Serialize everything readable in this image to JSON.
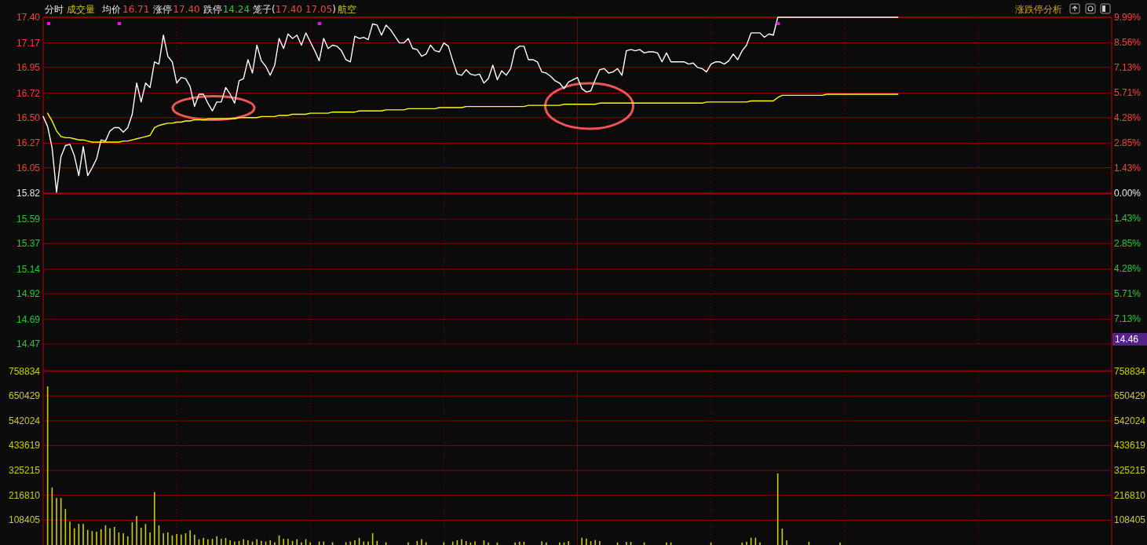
{
  "chart_data": [
    {
      "type": "line",
      "title": "分时",
      "annotations": [
        "成交量",
        "均价",
        "16.71",
        "涨停",
        "17.40",
        "跌停",
        "14.24",
        "笼子(",
        "17.40 17.05",
        ")",
        "航空",
        "涨跌停分析",
        "14.46"
      ],
      "categories": [
        null,
        null,
        null,
        null,
        null,
        null,
        null,
        null,
        null,
        null,
        null,
        null,
        null,
        null,
        null,
        null,
        null,
        null,
        null,
        null,
        null,
        null,
        null,
        null,
        null,
        null,
        null,
        null,
        null,
        null,
        null,
        null,
        null,
        null,
        null,
        null,
        null,
        null,
        null,
        null,
        null,
        null,
        null,
        null,
        null,
        null,
        null,
        null,
        null,
        null,
        null,
        null,
        null,
        null,
        null,
        null,
        null,
        null,
        null,
        null,
        null,
        null,
        null,
        null,
        null,
        null,
        null,
        null,
        null,
        null,
        null,
        null,
        null,
        null,
        null,
        null,
        null,
        null,
        null,
        null,
        null,
        null,
        null,
        null,
        null,
        null,
        null,
        null,
        null,
        null,
        null,
        null,
        null,
        null,
        null,
        null,
        null,
        null,
        null,
        null,
        null,
        null,
        null,
        null,
        null,
        null,
        null,
        null,
        null,
        null,
        null,
        null,
        null,
        null,
        null,
        null,
        null,
        null,
        null,
        null,
        null,
        null,
        null,
        null,
        null,
        null,
        null,
        null,
        null,
        null,
        null,
        null,
        null,
        null,
        null,
        null,
        null,
        null,
        null,
        null,
        null,
        null,
        null,
        null,
        null,
        null,
        null,
        null,
        null,
        null,
        null,
        null,
        null,
        null,
        null,
        null,
        null,
        null,
        null,
        null,
        null,
        null,
        null,
        null,
        null,
        null,
        null,
        null,
        null,
        null,
        null,
        null,
        null,
        null,
        null,
        null,
        null,
        null,
        null,
        null,
        null,
        null,
        null,
        null,
        null,
        null,
        null,
        null,
        null,
        null,
        null,
        null,
        null,
        null,
        null,
        null,
        null,
        null,
        null,
        null,
        null,
        null,
        null,
        null,
        null,
        null,
        null,
        null,
        null,
        null,
        null,
        null,
        null,
        null,
        null,
        null,
        null,
        null,
        null,
        null,
        null,
        null,
        null,
        null,
        null,
        null,
        null,
        null,
        null,
        null,
        null,
        null,
        null,
        null,
        null,
        null,
        null,
        null,
        null,
        null,
        null
      ],
      "series": [
        {
          "color": "#ffffff",
          "values": [
            16.51,
            16.42,
            16.23,
            15.83,
            16.15,
            16.25,
            16.26,
            16.16,
            15.98,
            16.24,
            15.98,
            16.05,
            16.13,
            16.3,
            16.29,
            16.38,
            16.41,
            16.41,
            16.37,
            16.41,
            16.53,
            16.81,
            16.64,
            16.81,
            16.77,
            17.0,
            16.98,
            17.24,
            17.05,
            17.0,
            16.81,
            16.86,
            16.85,
            16.78,
            16.6,
            16.71,
            16.71,
            16.63,
            16.56,
            16.64,
            16.64,
            16.77,
            16.71,
            16.63,
            16.83,
            16.85,
            17.02,
            16.9,
            17.15,
            17.01,
            16.96,
            16.88,
            16.97,
            17.21,
            17.12,
            17.25,
            17.21,
            17.24,
            17.15,
            17.26,
            17.18,
            17.1,
            17.01,
            17.21,
            17.12,
            17.15,
            17.14,
            17.1,
            17.02,
            17.0,
            17.23,
            17.21,
            17.22,
            17.2,
            17.34,
            17.33,
            17.24,
            17.33,
            17.29,
            17.23,
            17.17,
            17.17,
            17.21,
            17.12,
            17.11,
            17.05,
            17.07,
            17.15,
            17.1,
            17.09,
            17.17,
            17.14,
            17.01,
            16.89,
            16.88,
            16.93,
            16.89,
            16.88,
            16.89,
            16.81,
            16.85,
            16.97,
            16.84,
            16.92,
            16.88,
            16.94,
            17.11,
            17.14,
            17.14,
            17.02,
            17.02,
            17.0,
            16.91,
            16.9,
            16.87,
            16.83,
            16.81,
            16.76,
            16.82,
            16.84,
            16.86,
            16.76,
            16.73,
            16.74,
            16.84,
            16.93,
            16.94,
            16.9,
            16.91,
            16.94,
            16.88,
            17.1,
            17.11,
            17.1,
            17.11,
            17.08,
            17.09,
            17.09,
            17.08,
            17.0,
            17.08,
            17.0,
            17.0,
            17.0,
            17.0,
            16.98,
            16.99,
            16.95,
            16.94,
            16.91,
            16.98,
            17.0,
            17.0,
            16.98,
            17.01,
            17.07,
            17.02,
            17.1,
            17.15,
            17.26,
            17.26,
            17.26,
            17.22,
            17.25,
            17.24,
            17.4,
            17.4,
            17.4,
            17.4,
            17.4,
            17.4,
            17.4,
            17.4,
            17.4,
            17.4,
            17.4,
            17.4,
            17.4,
            17.4,
            17.4,
            17.4,
            17.4,
            17.4,
            17.4,
            17.4,
            17.4,
            17.4,
            17.4,
            17.4,
            17.4,
            17.4,
            17.4,
            17.4,
            null,
            null,
            null,
            null,
            null,
            null,
            null,
            null,
            null,
            null,
            null,
            null,
            null,
            null,
            null,
            null,
            null,
            null,
            null,
            null,
            null,
            null,
            null,
            null,
            null,
            null,
            null,
            null,
            null,
            null,
            null,
            null,
            null,
            null,
            null,
            null,
            null,
            null,
            null,
            null,
            null,
            null,
            null,
            null,
            null,
            null,
            null,
            null
          ]
        },
        {
          "color": "#ffff00",
          "values": [
            null,
            16.54,
            16.47,
            16.38,
            16.33,
            16.32,
            16.32,
            16.31,
            16.3,
            16.3,
            16.29,
            16.28,
            16.28,
            16.28,
            16.28,
            16.28,
            16.28,
            16.28,
            16.29,
            16.29,
            16.3,
            16.31,
            16.32,
            16.33,
            16.34,
            16.41,
            16.43,
            16.44,
            16.45,
            16.45,
            16.46,
            16.46,
            16.47,
            16.47,
            16.48,
            16.48,
            16.48,
            16.49,
            16.49,
            16.49,
            16.49,
            16.49,
            16.49,
            16.49,
            16.5,
            16.5,
            16.5,
            16.5,
            16.5,
            16.51,
            16.51,
            16.51,
            16.51,
            16.52,
            16.52,
            16.52,
            16.53,
            16.53,
            16.53,
            16.53,
            16.54,
            16.54,
            16.54,
            16.54,
            16.54,
            16.55,
            16.55,
            16.55,
            16.55,
            16.55,
            16.55,
            16.56,
            16.56,
            16.56,
            16.56,
            16.56,
            16.56,
            16.57,
            16.57,
            16.57,
            16.57,
            16.57,
            16.58,
            16.58,
            16.58,
            16.58,
            16.58,
            16.58,
            16.58,
            16.59,
            16.59,
            16.59,
            16.59,
            16.59,
            16.59,
            16.6,
            16.6,
            16.6,
            16.6,
            16.6,
            16.6,
            16.6,
            16.6,
            16.6,
            16.6,
            16.6,
            16.6,
            16.6,
            16.6,
            16.61,
            16.61,
            16.61,
            16.61,
            16.61,
            16.61,
            16.61,
            16.61,
            16.62,
            16.62,
            16.62,
            16.62,
            16.62,
            16.62,
            16.62,
            16.62,
            16.63,
            16.63,
            16.63,
            16.63,
            16.63,
            16.63,
            16.63,
            16.63,
            16.63,
            16.63,
            16.63,
            16.63,
            16.63,
            16.63,
            16.63,
            16.63,
            16.63,
            16.63,
            16.63,
            16.63,
            16.63,
            16.63,
            16.63,
            16.63,
            16.64,
            16.64,
            16.64,
            16.64,
            16.64,
            16.64,
            16.64,
            16.64,
            16.64,
            16.64,
            16.65,
            16.65,
            16.65,
            16.65,
            16.65,
            16.65,
            16.68,
            16.7,
            16.7,
            16.7,
            16.7,
            16.7,
            16.7,
            16.7,
            16.7,
            16.7,
            16.7,
            16.71,
            16.71,
            16.71,
            16.71,
            16.71,
            16.71,
            16.71,
            16.71,
            16.71,
            16.71,
            16.71,
            16.71,
            16.71,
            16.71,
            16.71,
            16.71,
            16.71,
            null,
            null,
            null,
            null,
            null,
            null,
            null,
            null,
            null,
            null,
            null,
            null,
            null,
            null,
            null,
            null,
            null,
            null,
            null,
            null,
            null,
            null,
            null,
            null,
            null,
            null,
            null,
            null,
            null,
            null,
            null,
            null,
            null,
            null,
            null,
            null,
            null,
            null,
            null,
            null,
            null,
            null,
            null,
            null,
            null,
            null,
            null,
            null
          ]
        }
      ],
      "ylim": [
        14.47,
        17.4
      ],
      "yticks": [
        {
          "value": 17.4,
          "label": "17.40"
        },
        17.17,
        16.95,
        16.72,
        {
          "value": 16.5,
          "label": "16.50"
        },
        16.27,
        16.05,
        15.82,
        15.59,
        15.37,
        15.14,
        14.92,
        14.69,
        14.47
      ],
      "y2lim": [
        -8.56,
        9.99
      ],
      "y2ticks": [
        {
          "value": 9.99,
          "label": "9.99%"
        },
        {
          "value": 8.56,
          "label": "8.56%"
        },
        {
          "value": 7.13,
          "label": "7.13%"
        },
        {
          "value": 5.71,
          "label": "5.71%"
        },
        {
          "value": 4.28,
          "label": "4.28%"
        },
        {
          "value": 2.85,
          "label": "2.85%"
        },
        {
          "value": 1.43,
          "label": "1.43%"
        },
        {
          "value": 0,
          "label": "0.00%"
        },
        {
          "value": -1.43,
          "label": "1.43%"
        },
        {
          "value": -2.85,
          "label": "2.85%"
        },
        {
          "value": -4.28,
          "label": "4.28%"
        },
        {
          "value": -5.71,
          "label": "5.71%"
        },
        {
          "value": -7.13,
          "label": "7.13%"
        },
        {
          "value": -8.56,
          "label": null
        }
      ],
      "ref_lines": [
        {
          "axis": "y",
          "value": 15.82
        }
      ],
      "grid": true
    },
    {
      "type": "bar",
      "color": "#cccc00",
      "categories": [
        null,
        null,
        null,
        null,
        null,
        null,
        null,
        null,
        null,
        null,
        null,
        null,
        null,
        null,
        null,
        null,
        null,
        null,
        null,
        null,
        null,
        null,
        null,
        null,
        null,
        null,
        null,
        null,
        null,
        null,
        null,
        null,
        null,
        null,
        null,
        null,
        null,
        null,
        null,
        null,
        null,
        null,
        null,
        null,
        null,
        null,
        null,
        null,
        null,
        null,
        null,
        null,
        null,
        null,
        null,
        null,
        null,
        null,
        null,
        null,
        null,
        null,
        null,
        null,
        null,
        null,
        null,
        null,
        null,
        null,
        null,
        null,
        null,
        null,
        null,
        null,
        null,
        null,
        null,
        null,
        null,
        null,
        null,
        null,
        null,
        null,
        null,
        null,
        null,
        null,
        null,
        null,
        null,
        null,
        null,
        null,
        null,
        null,
        null,
        null,
        null,
        null,
        null,
        null,
        null,
        null,
        null,
        null,
        null,
        null,
        null,
        null,
        null,
        null,
        null,
        null,
        null,
        null,
        null,
        null,
        null,
        null,
        null,
        null,
        null,
        null,
        null,
        null,
        null,
        null,
        null,
        null,
        null,
        null,
        null,
        null,
        null,
        null,
        null,
        null,
        null,
        null,
        null,
        null,
        null,
        null,
        null,
        null,
        null,
        null,
        null,
        null,
        null,
        null,
        null,
        null,
        null,
        null,
        null,
        null,
        null,
        null,
        null,
        null,
        null,
        null,
        null,
        null,
        null,
        null,
        null,
        null,
        null,
        null,
        null,
        null,
        null,
        null,
        null,
        null,
        null,
        null,
        null,
        null,
        null,
        null,
        null,
        null,
        null,
        null,
        null,
        null,
        null,
        null,
        null,
        null,
        null,
        null,
        null,
        null,
        null,
        null,
        null,
        null,
        null,
        null,
        null,
        null,
        null,
        null,
        null,
        null,
        null,
        null,
        null,
        null,
        null,
        null,
        null,
        null,
        null,
        null,
        null,
        null,
        null,
        null,
        null,
        null,
        null,
        null,
        null,
        null,
        null,
        null,
        null,
        null,
        null,
        null,
        null,
        null,
        null
      ],
      "values": [
        null,
        692000,
        251000,
        205000,
        205000,
        157000,
        102000,
        73000,
        92000,
        92000,
        66000,
        61000,
        58000,
        69000,
        86000,
        73000,
        79000,
        55000,
        51000,
        38000,
        99000,
        126000,
        75000,
        92000,
        55000,
        231000,
        86000,
        51000,
        55000,
        42000,
        48000,
        45000,
        51000,
        64000,
        45000,
        25000,
        31000,
        25000,
        27000,
        38000,
        27000,
        31000,
        21000,
        15000,
        18000,
        25000,
        21000,
        15000,
        25000,
        18000,
        15000,
        21000,
        12000,
        42000,
        27000,
        27000,
        18000,
        25000,
        12000,
        25000,
        12000,
        null,
        15000,
        15000,
        null,
        12000,
        null,
        null,
        12000,
        15000,
        21000,
        31000,
        15000,
        15000,
        51000,
        18000,
        null,
        12000,
        null,
        null,
        null,
        null,
        12000,
        null,
        18000,
        25000,
        12000,
        null,
        null,
        null,
        12000,
        null,
        15000,
        21000,
        25000,
        17000,
        11000,
        16000,
        null,
        20000,
        11000,
        null,
        11000,
        null,
        null,
        null,
        11000,
        14000,
        14000,
        null,
        null,
        null,
        16000,
        11000,
        null,
        null,
        11000,
        11000,
        17000,
        null,
        null,
        32000,
        28000,
        17000,
        22000,
        17000,
        null,
        null,
        null,
        11000,
        null,
        14000,
        14000,
        null,
        null,
        11000,
        null,
        null,
        null,
        null,
        11000,
        11000,
        null,
        null,
        null,
        null,
        null,
        null,
        null,
        null,
        11000,
        null,
        null,
        null,
        null,
        null,
        null,
        11000,
        14000,
        32000,
        32000,
        11000,
        null,
        null,
        null,
        312000,
        72000,
        20000,
        null,
        null,
        null,
        null,
        14000,
        null,
        null,
        null,
        null,
        null,
        null,
        11000,
        null,
        null,
        null,
        null,
        null,
        null,
        null,
        null,
        null,
        null,
        null,
        null,
        null,
        null,
        null,
        null,
        null,
        null,
        null,
        null,
        null,
        null,
        null,
        null,
        null,
        null,
        null,
        null,
        null,
        null,
        null,
        null,
        null,
        null,
        null,
        null,
        null,
        null,
        null,
        null,
        null,
        null,
        null,
        null,
        null,
        null,
        null,
        null,
        null,
        null,
        null,
        null,
        null,
        null,
        null,
        null,
        null,
        null,
        null,
        null,
        null
      ],
      "ylim": [
        0,
        758834
      ],
      "yticks": [
        108405,
        216810,
        325215,
        433619,
        542024,
        650429,
        758834
      ],
      "y2lim": [
        0,
        758834
      ],
      "y2ticks": [
        108405,
        216810,
        325215,
        433619,
        542024,
        650429,
        758834
      ],
      "grid": true
    }
  ]
}
